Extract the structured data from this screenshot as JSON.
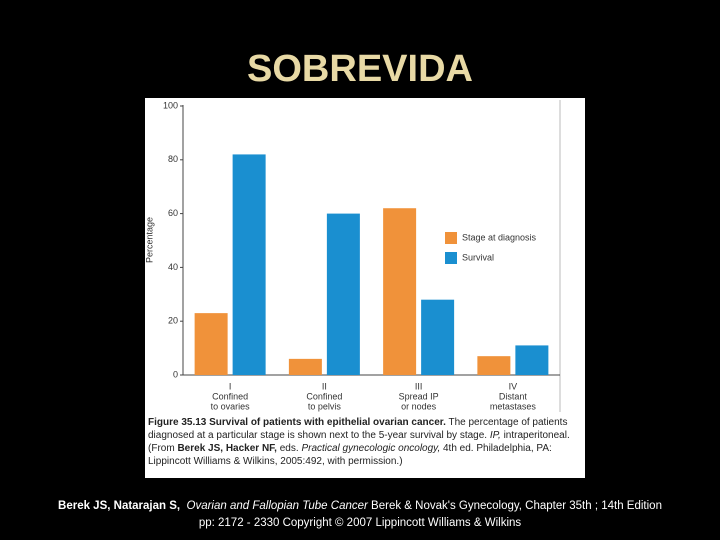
{
  "slide_title": "SOBREVIDA",
  "chart_data": {
    "type": "bar",
    "y_label": "Percentage",
    "categories": [
      [
        "I",
        "Confined",
        "to ovaries"
      ],
      [
        "II",
        "Confined",
        "to pelvis"
      ],
      [
        "III",
        "Spread IP",
        "or nodes"
      ],
      [
        "IV",
        "Distant",
        "metastases"
      ]
    ],
    "series": [
      {
        "name": "Stage at diagnosis",
        "color": "#f0923a",
        "values": [
          23,
          6,
          62,
          7
        ]
      },
      {
        "name": "Survival",
        "color": "#1a8fd0",
        "values": [
          82,
          60,
          28,
          11
        ]
      }
    ],
    "ylim": [
      0,
      100
    ],
    "yticks": [
      0,
      20,
      40,
      60,
      80,
      100
    ],
    "grid": false,
    "caption": [
      "Figure 35.13 Survival of patients with epithelial ovarian cancer.",
      " The percentage of patients diagnosed at a particular stage is shown next to the 5-year survival by stage. ",
      "IP,",
      " intraperitoneal. (From ",
      "Berek JS, Hacker NF,",
      " eds. ",
      "Practical gynecologic oncology,",
      " 4th ed. Philadelphia, PA: Lippincott Williams & Wilkins, 2005:492, with permission.)"
    ]
  },
  "footer": {
    "line1": [
      "Berek JS, Natarajan S,",
      "Ovarian and Fallopian Tube Cancer",
      "Berek & Novak's Gynecology, Chapter 35th ; 14th Edition"
    ],
    "line2": "pp: 2172 - 2330 Copyright © 2007 Lippincott Williams & Wilkins"
  }
}
